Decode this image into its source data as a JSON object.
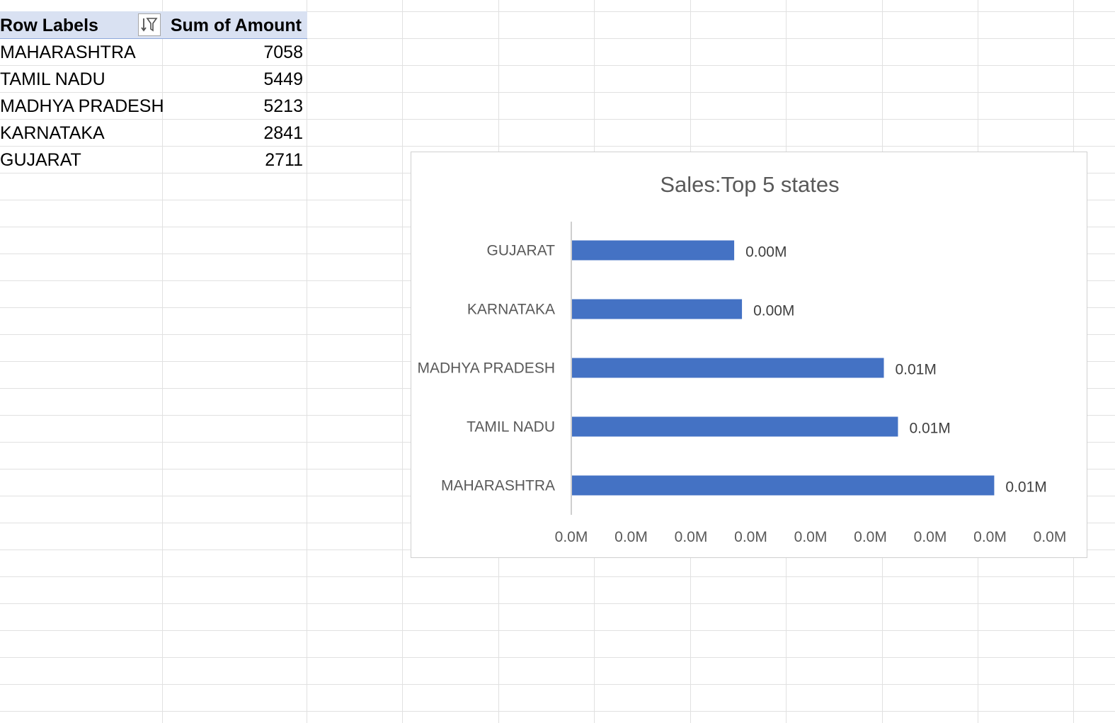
{
  "pivot": {
    "header": {
      "row_labels": "Row Labels",
      "sum_label": "Sum of Amount",
      "filter_icon": "sort-filter-icon"
    },
    "rows": [
      {
        "label": "MAHARASHTRA",
        "value": "7058"
      },
      {
        "label": "TAMIL NADU",
        "value": "5449"
      },
      {
        "label": "MADHYA PRADESH",
        "value": "5213"
      },
      {
        "label": "KARNATAKA",
        "value": "2841"
      },
      {
        "label": "GUJARAT",
        "value": "2711"
      }
    ]
  },
  "chart_data": {
    "type": "bar",
    "orientation": "horizontal",
    "title": "Sales:Top 5 states",
    "categories": [
      "GUJARAT",
      "KARNATAKA",
      "MADHYA PRADESH",
      "TAMIL NADU",
      "MAHARASHTRA"
    ],
    "values": [
      2711,
      2841,
      5213,
      5449,
      7058
    ],
    "data_labels": [
      "0.00M",
      "0.00M",
      "0.01M",
      "0.01M",
      "0.01M"
    ],
    "x_tick_labels": [
      "0.0M",
      "0.0M",
      "0.0M",
      "0.0M",
      "0.0M",
      "0.0M",
      "0.0M",
      "0.0M",
      "0.0M"
    ],
    "xlim": [
      0,
      8000
    ],
    "xlabel": "",
    "ylabel": "",
    "bar_color": "#4472c4",
    "grid": false,
    "legend": "none"
  },
  "colors": {
    "gridline": "#e1e1e1",
    "header_fill": "#d9e1f2",
    "axis_text": "#595959"
  }
}
